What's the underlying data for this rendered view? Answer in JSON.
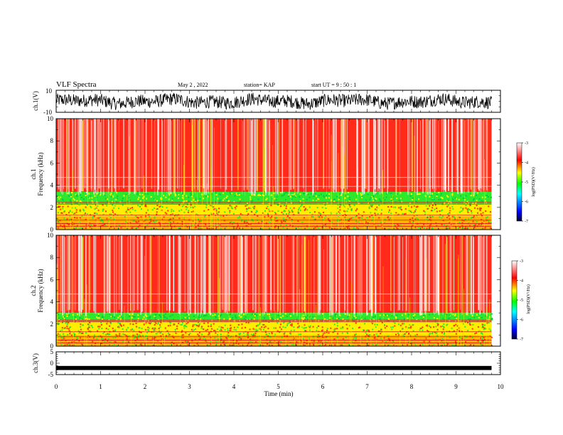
{
  "header": {
    "title": "VLF Spectra",
    "date": "May 2  , 2022",
    "station": "station= KAP",
    "start": "start  UT =  9 : 50 : 1"
  },
  "axes": {
    "ch1_voltage_label": "ch.1(V)",
    "ch1_spectrum_label_line1": "ch.1",
    "ch1_spectrum_label_line2": "Frequency (kHz)",
    "ch2_spectrum_label_line1": "ch.2",
    "ch2_spectrum_label_line2": "Frequency (kHz)",
    "ch3_voltage_label": "ch.3(V)",
    "xlabel": "Time (min)",
    "colorbar_label": "log(PSD)(V²/Hz)"
  },
  "colors": {
    "background_spectrum": "#ff2a1a",
    "low_band": "#2ee82e",
    "mid_band": "#ffee00",
    "trace": "#000000",
    "colormap": [
      "#000030",
      "#0000ff",
      "#00ffff",
      "#00ff00",
      "#ffff00",
      "#ff0000",
      "#ffffff"
    ]
  },
  "chart_data": [
    {
      "type": "line",
      "panel": "ch.1 voltage",
      "ylabel": "ch.1(V)",
      "ylim": [
        -10,
        10
      ],
      "yticks": [
        10,
        -10
      ],
      "xlim": [
        0,
        10
      ],
      "x_data_end": 9.8,
      "description": "noisy waveform oscillating roughly between -7 and 7 V"
    },
    {
      "type": "heatmap",
      "panel": "ch.1 spectrogram",
      "ylabel": "Frequency (kHz)",
      "ylim": [
        0,
        10
      ],
      "yticks": [
        0,
        2,
        4,
        6,
        8,
        10
      ],
      "xlim": [
        0,
        10
      ],
      "colorbar": {
        "ticks": [
          -3,
          -4,
          -5,
          -6,
          -7
        ],
        "label": "log(PSD)(V²/Hz)"
      },
      "bands": [
        {
          "from_khz": 3.4,
          "to_khz": 10,
          "log_psd": -4
        },
        {
          "from_khz": 2.3,
          "to_khz": 3.4,
          "log_psd": -5.3
        },
        {
          "from_khz": 1.2,
          "to_khz": 2.3,
          "log_psd": -4.9
        },
        {
          "from_khz": 0,
          "to_khz": 1.2,
          "log_psd": -4.5
        }
      ]
    },
    {
      "type": "heatmap",
      "panel": "ch.2 spectrogram",
      "ylabel": "Frequency (kHz)",
      "ylim": [
        0,
        10
      ],
      "yticks": [
        0,
        2,
        4,
        6,
        8,
        10
      ],
      "xlim": [
        0,
        10
      ],
      "colorbar": {
        "ticks": [
          -3,
          -4,
          -5,
          -6,
          -7
        ],
        "label": "log(PSD)(V²/Hz)"
      },
      "bands": [
        {
          "from_khz": 3.0,
          "to_khz": 10,
          "log_psd": -4
        },
        {
          "from_khz": 2.2,
          "to_khz": 3.0,
          "log_psd": -5.4
        },
        {
          "from_khz": 1.0,
          "to_khz": 2.2,
          "log_psd": -5.0
        },
        {
          "from_khz": 0,
          "to_khz": 1.0,
          "log_psd": -4.6
        }
      ]
    },
    {
      "type": "line",
      "panel": "ch.3 voltage",
      "ylabel": "ch.3(V)",
      "ylim": [
        -5,
        5
      ],
      "yticks": [
        5,
        0,
        -5
      ],
      "xlim": [
        0,
        10
      ],
      "xticks": [
        0,
        1,
        2,
        3,
        4,
        5,
        6,
        7,
        8,
        9,
        10
      ],
      "xlabel": "Time (min)",
      "x_data_end": 9.8,
      "description": "thick flat trace near -2 V"
    }
  ]
}
